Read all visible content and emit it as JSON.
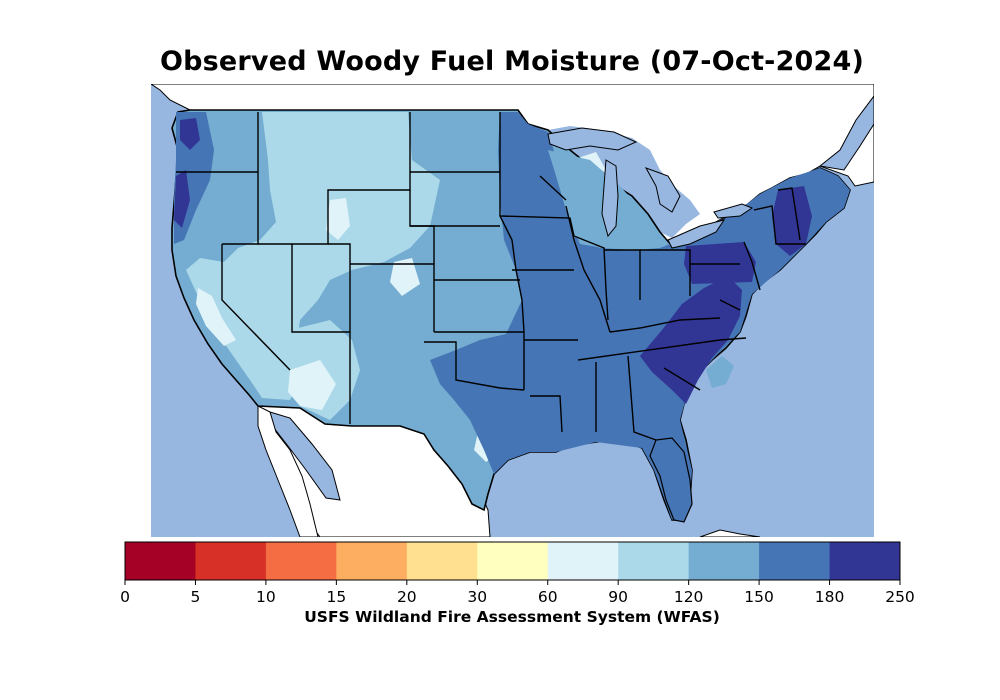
{
  "title": "Observed Woody Fuel Moisture (07-Oct-2024)",
  "source": "USFS Wildland Fire Assessment System (WFAS)",
  "colorbar": {
    "ticks": [
      "0",
      "5",
      "10",
      "15",
      "20",
      "30",
      "60",
      "90",
      "120",
      "150",
      "180",
      "250"
    ],
    "colors": [
      "#a50026",
      "#d73027",
      "#f46d43",
      "#fdae61",
      "#fee090",
      "#ffffbf",
      "#e0f3f8",
      "#abd9e9",
      "#74add1",
      "#4575b4",
      "#313695"
    ]
  },
  "map": {
    "ocean_color": "#97b6e0",
    "land_outside_color": "#ffffff",
    "border_color": "#000000"
  }
}
